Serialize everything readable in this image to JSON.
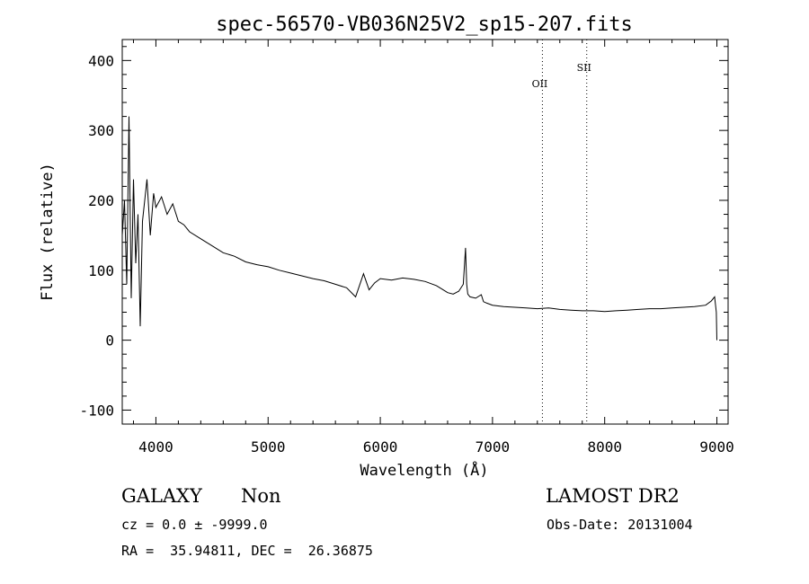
{
  "chart_data": {
    "type": "line",
    "title": "spec-56570-VB036N25V2_sp15-207.fits",
    "xlabel": "Wavelength (Å)",
    "ylabel": "Flux (relative)",
    "xlim": [
      3700,
      9100
    ],
    "ylim": [
      -120,
      430
    ],
    "xticks": [
      4000,
      5000,
      6000,
      7000,
      8000,
      9000
    ],
    "yticks": [
      -100,
      0,
      100,
      200,
      300,
      400
    ],
    "grid": false,
    "series": [
      {
        "x": [
          3700,
          3720,
          3740,
          3760,
          3780,
          3800,
          3820,
          3840,
          3860,
          3880,
          3900,
          3920,
          3950,
          3980,
          4000,
          4050,
          4100,
          4150,
          4200,
          4250,
          4300,
          4400,
          4500,
          4600,
          4700,
          4800,
          4900,
          5000,
          5100,
          5200,
          5300,
          5400,
          5500,
          5600,
          5700,
          5780,
          5850,
          5900,
          5950,
          6000,
          6100,
          6200,
          6300,
          6400,
          6500,
          6560,
          6600,
          6650,
          6700,
          6740,
          6760,
          6770,
          6780,
          6800,
          6850,
          6900,
          6920,
          6950,
          7000,
          7100,
          7200,
          7300,
          7400,
          7500,
          7600,
          7700,
          7800,
          7900,
          8000,
          8100,
          8200,
          8300,
          8400,
          8500,
          8600,
          8700,
          8800,
          8900,
          8950,
          8980,
          8995,
          9000
        ],
        "y": [
          150,
          200,
          80,
          320,
          60,
          230,
          110,
          180,
          20,
          170,
          200,
          230,
          150,
          210,
          190,
          205,
          180,
          195,
          170,
          165,
          155,
          145,
          135,
          125,
          120,
          112,
          108,
          105,
          100,
          96,
          92,
          88,
          85,
          80,
          75,
          62,
          95,
          72,
          82,
          88,
          86,
          89,
          87,
          84,
          78,
          72,
          68,
          66,
          70,
          80,
          132,
          80,
          66,
          62,
          60,
          65,
          55,
          53,
          50,
          48,
          47,
          46,
          45,
          46,
          44,
          43,
          42,
          42,
          41,
          42,
          43,
          44,
          45,
          45,
          46,
          47,
          48,
          50,
          56,
          62,
          40,
          0
        ]
      }
    ],
    "annotations": [
      {
        "label": "OII",
        "x": 7445
      },
      {
        "label": "SII",
        "x": 7840
      }
    ]
  },
  "info": {
    "object_type": "GALAXY",
    "subclass": "Non",
    "survey": "LAMOST DR2",
    "cz_line": "cz = 0.0 ± -9999.0",
    "obs_date_line": "Obs-Date: 20131004",
    "radec_line": "RA =  35.94811, DEC =  26.36875"
  }
}
